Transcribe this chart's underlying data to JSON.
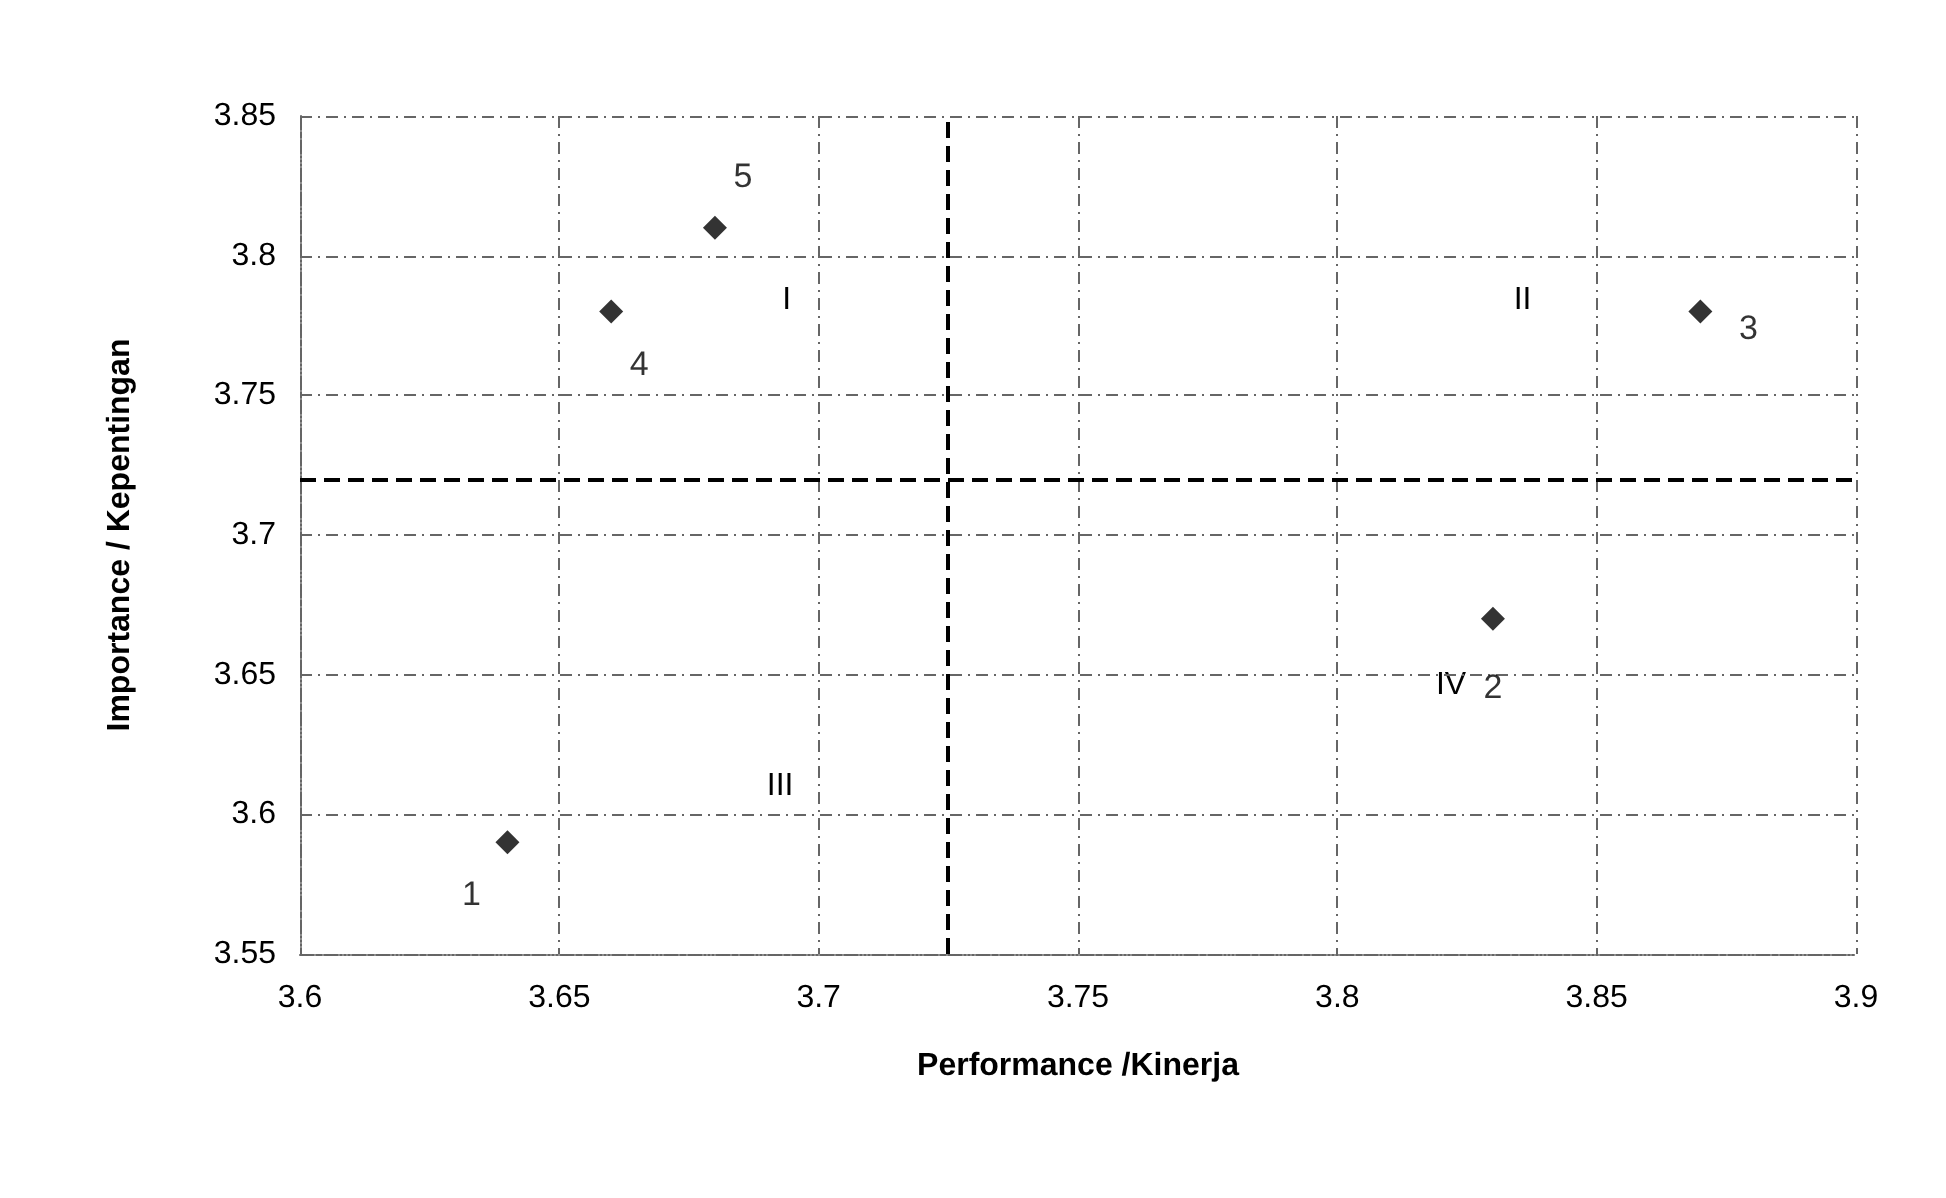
{
  "chart_data": {
    "type": "scatter",
    "xlabel": "Performance /Kinerja",
    "ylabel": "Importance / Kepentingan",
    "x": [
      3.64,
      3.83,
      3.87,
      3.66,
      3.68
    ],
    "values": [
      3.59,
      3.67,
      3.78,
      3.78,
      3.81
    ],
    "color": "#000000",
    "marker": "diamond",
    "grid": true,
    "xlim": [
      3.6,
      3.9
    ],
    "xticks": [
      3.6,
      3.65,
      3.7,
      3.75,
      3.8,
      3.85,
      3.9
    ],
    "ylim": [
      3.55,
      3.85
    ],
    "yticks": [
      3.55,
      3.6,
      3.65,
      3.7,
      3.75,
      3.8,
      3.85
    ],
    "ref_lines": [
      {
        "axis": "x",
        "value": 3.725,
        "line_style": "dashed",
        "color": "#000000"
      },
      {
        "axis": "y",
        "value": 3.72,
        "line_style": "dashed",
        "color": "#000000"
      }
    ],
    "annotations": [
      {
        "text": "1",
        "x": 3.64,
        "y": 3.59
      },
      {
        "text": "2",
        "x": 3.83,
        "y": 3.67
      },
      {
        "text": "3",
        "x": 3.87,
        "y": 3.78
      },
      {
        "text": "4",
        "x": 3.66,
        "y": 3.78
      },
      {
        "text": "5",
        "x": 3.68,
        "y": 3.81
      },
      "I",
      "II",
      "III",
      "IV"
    ]
  }
}
